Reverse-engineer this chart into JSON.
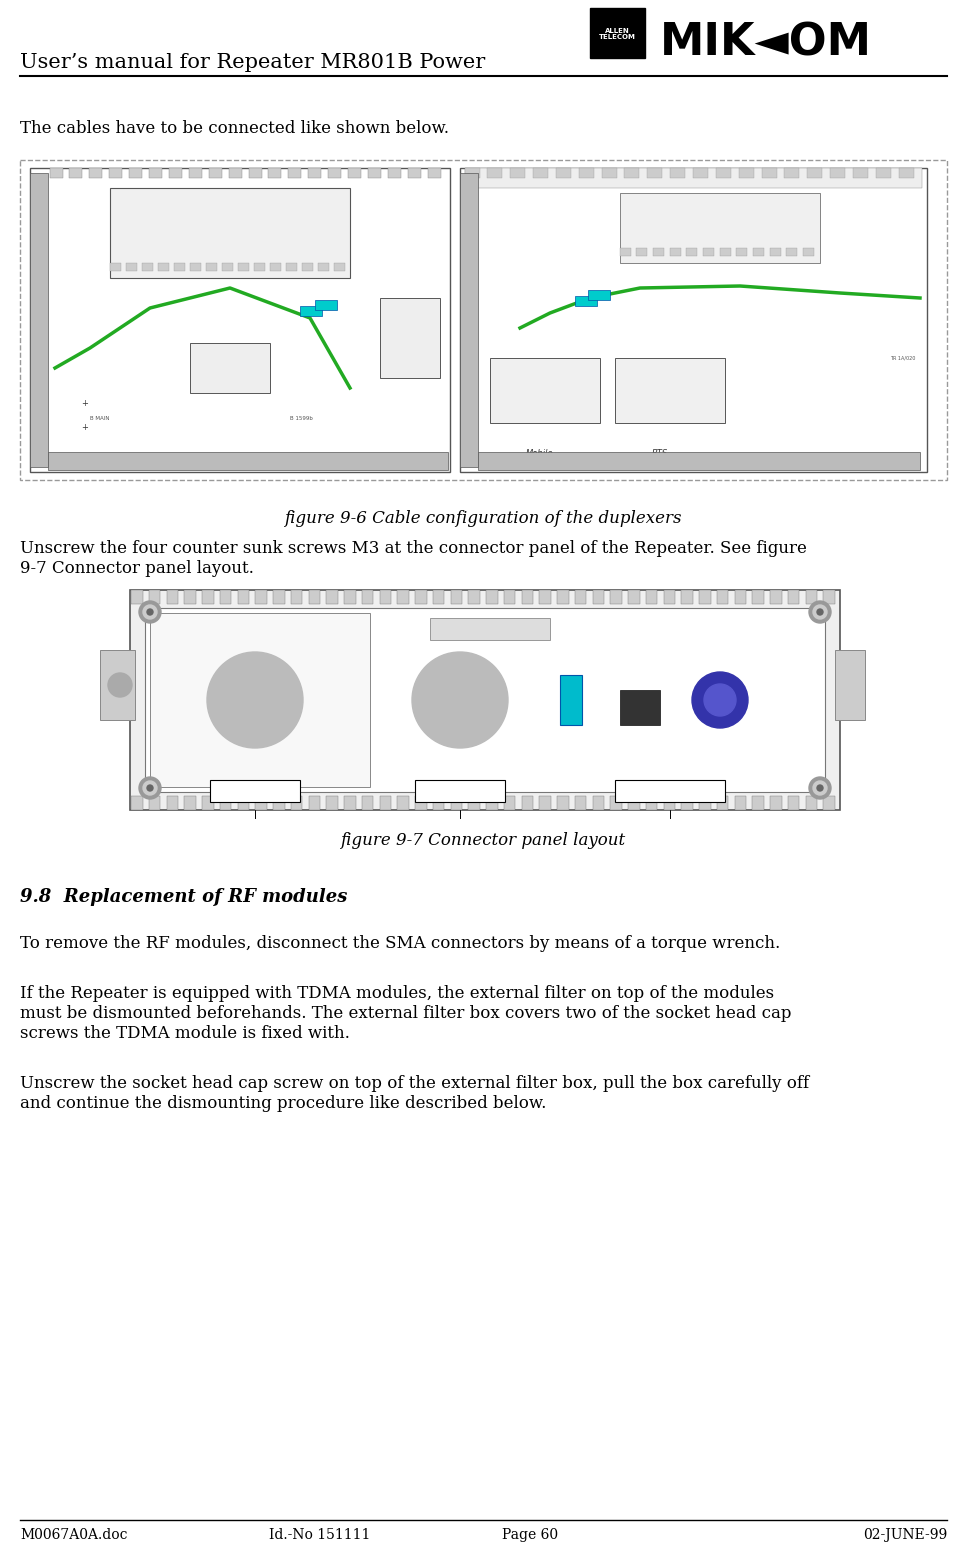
{
  "page_width": 9.67,
  "page_height": 15.54,
  "bg_color": "#ffffff",
  "header_title": "User’s manual for Repeater MR801B Power",
  "body_text_1": "The cables have to be connected like shown below.",
  "fig1_caption": "figure 9-6 Cable configuration of the duplexers",
  "para_1_line1": "Unscrew the four counter sunk screws M3 at the connector panel of the Repeater. See figure",
  "para_1_line2": "9-7 Connector panel layout.",
  "fig2_caption": "figure 9-7 Connector panel layout",
  "section_heading": "9.8  Replacement of RF modules",
  "para_2": "To remove the RF modules, disconnect the SMA connectors by means of a torque wrench.",
  "para_3_line1": "If the Repeater is equipped with TDMA modules, the external filter on top of the modules",
  "para_3_line2": "must be dismounted beforehands. The external filter box covers two of the socket head cap",
  "para_3_line3": "screws the TDMA module is fixed with.",
  "para_4_line1": "Unscrew the socket head cap screw on top of the external filter box, pull the box carefully off",
  "para_4_line2": "and continue the dismounting procedure like described below.",
  "footer_left": "M0067A0A.doc",
  "footer_center_left": "Id.-No 151111",
  "footer_center": "Page 60",
  "footer_right": "02-JUNE-99",
  "text_color": "#000000",
  "body_font_size": 12,
  "caption_font_size": 12,
  "section_font_size": 13,
  "footer_font_size": 10
}
